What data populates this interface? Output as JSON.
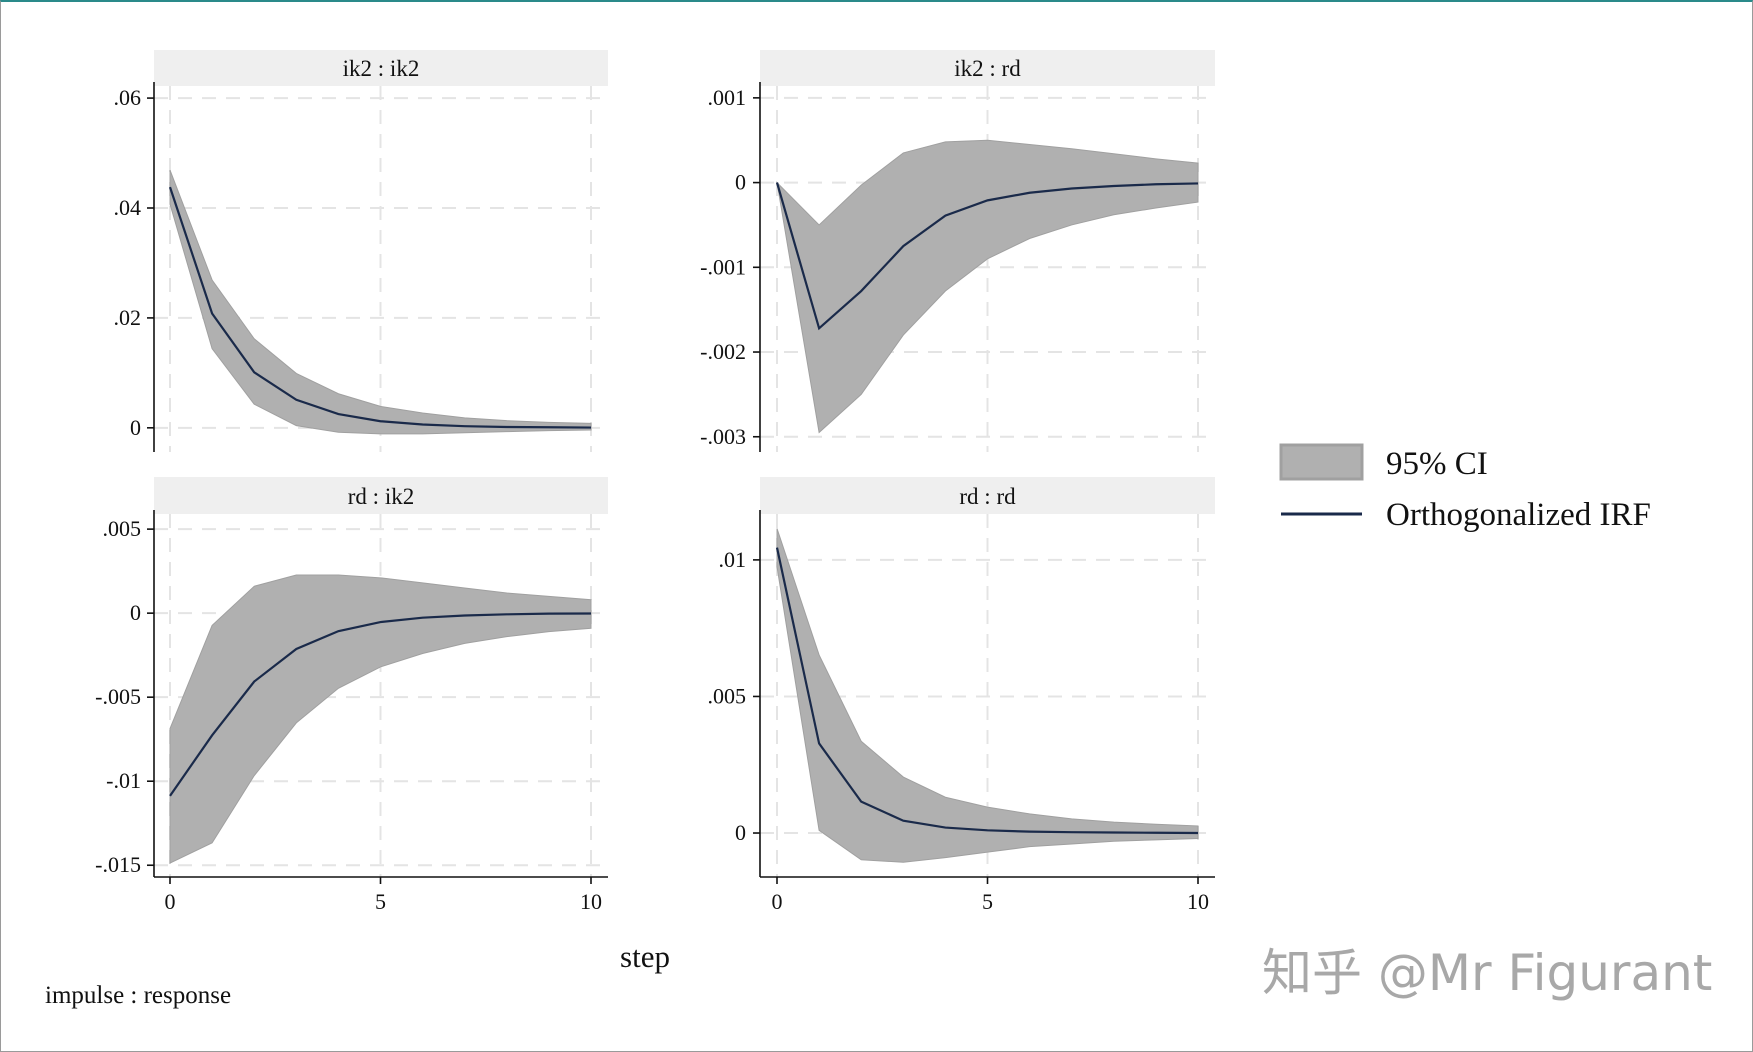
{
  "chart_data": [
    {
      "type": "area",
      "title": "ik2 : ik2",
      "x": [
        0,
        1,
        2,
        3,
        4,
        5,
        6,
        7,
        8,
        9,
        10
      ],
      "xticks": [
        0,
        5,
        10
      ],
      "xlim": [
        0,
        10
      ],
      "ylim": [
        -0.0044,
        0.0622
      ],
      "yticks": [
        {
          "v": 0.06,
          "label": ".06"
        },
        {
          "v": 0.04,
          "label": ".04"
        },
        {
          "v": 0.02,
          "label": ".02"
        },
        {
          "v": 0,
          "label": "0"
        }
      ],
      "irf": [
        0.0438,
        0.0208,
        0.0101,
        0.0051,
        0.0025,
        0.0012,
        0.0006,
        0.0003,
        0.00015,
        0.0001,
        5e-05
      ],
      "upper": [
        0.0469,
        0.0269,
        0.0162,
        0.0099,
        0.0062,
        0.0039,
        0.0027,
        0.0018,
        0.0013,
        0.001,
        0.0008
      ],
      "lower": [
        0.0407,
        0.0144,
        0.0043,
        0.0004,
        -0.0008,
        -0.0011,
        -0.0011,
        -0.0009,
        -0.0007,
        -0.0005,
        -0.0004
      ],
      "grid": true
    },
    {
      "type": "area",
      "title": "ik2 : rd",
      "x": [
        0,
        1,
        2,
        3,
        4,
        5,
        6,
        7,
        8,
        9,
        10
      ],
      "xticks": [
        0,
        5,
        10
      ],
      "xlim": [
        0,
        10
      ],
      "ylim": [
        -0.00318,
        0.00114
      ],
      "yticks": [
        {
          "v": 0.001,
          "label": ".001"
        },
        {
          "v": 0,
          "label": "0"
        },
        {
          "v": -0.001,
          "label": "-.001"
        },
        {
          "v": -0.002,
          "label": "-.002"
        },
        {
          "v": -0.003,
          "label": "-.003"
        }
      ],
      "irf": [
        0,
        -0.00172,
        -0.00128,
        -0.00075,
        -0.00039,
        -0.00021,
        -0.00012,
        -7e-05,
        -4e-05,
        -2e-05,
        -1e-05
      ],
      "upper": [
        0,
        -0.0005,
        -3e-05,
        0.00035,
        0.00048,
        0.0005,
        0.00045,
        0.0004,
        0.00034,
        0.00028,
        0.00023
      ],
      "lower": [
        0,
        -0.00295,
        -0.0025,
        -0.0018,
        -0.00128,
        -0.0009,
        -0.00066,
        -0.0005,
        -0.00038,
        -0.0003,
        -0.00023
      ],
      "grid": true
    },
    {
      "type": "area",
      "title": "rd : ik2",
      "x": [
        0,
        1,
        2,
        3,
        4,
        5,
        6,
        7,
        8,
        9,
        10
      ],
      "xticks": [
        0,
        5,
        10
      ],
      "xlim": [
        0,
        10
      ],
      "ylim": [
        -0.0157,
        0.0059
      ],
      "yticks": [
        {
          "v": 0.005,
          "label": ".005"
        },
        {
          "v": 0,
          "label": "0"
        },
        {
          "v": -0.005,
          "label": "-.005"
        },
        {
          "v": -0.01,
          "label": "-.01"
        },
        {
          "v": -0.015,
          "label": "-.015"
        }
      ],
      "irf": [
        -0.01087,
        -0.00727,
        -0.00407,
        -0.00213,
        -0.00107,
        -0.00053,
        -0.00027,
        -0.00014,
        -7e-05,
        -3e-05,
        -2e-05
      ],
      "upper": [
        -0.00687,
        -0.00073,
        0.0016,
        0.00227,
        0.00227,
        0.0021,
        0.0018,
        0.0015,
        0.0012,
        0.001,
        0.0008
      ],
      "lower": [
        -0.01487,
        -0.01367,
        -0.00967,
        -0.00653,
        -0.00447,
        -0.0032,
        -0.0024,
        -0.0018,
        -0.0014,
        -0.0011,
        -0.0009
      ],
      "grid": true
    },
    {
      "type": "area",
      "title": "rd : rd",
      "x": [
        0,
        1,
        2,
        3,
        4,
        5,
        6,
        7,
        8,
        9,
        10
      ],
      "xticks": [
        0,
        5,
        10
      ],
      "xlim": [
        0,
        10
      ],
      "ylim": [
        -0.00161,
        0.01168
      ],
      "yticks": [
        {
          "v": 0.01,
          "label": ".01"
        },
        {
          "v": 0.005,
          "label": ".005"
        },
        {
          "v": 0,
          "label": "0"
        }
      ],
      "irf": [
        0.01045,
        0.00328,
        0.00115,
        0.00045,
        0.0002,
        0.0001,
        5e-05,
        3e-05,
        2e-05,
        1e-05,
        0
      ],
      "upper": [
        0.01115,
        0.00652,
        0.00336,
        0.00205,
        0.00131,
        0.00095,
        0.0007,
        0.00052,
        0.0004,
        0.00032,
        0.00026
      ],
      "lower": [
        0.00975,
        0.0001,
        -0.00098,
        -0.00107,
        -0.0009,
        -0.0007,
        -0.0005,
        -0.0004,
        -0.0003,
        -0.00025,
        -0.0002
      ],
      "grid": true
    }
  ],
  "xlabel": "step",
  "note": "impulse : response",
  "legend": {
    "placement": "right",
    "ci_label": "95% CI",
    "irf_label": "Orthogonalized IRF"
  },
  "watermark": "知乎 @Mr Figurant",
  "colors": {
    "ci": "#b0b0b0",
    "ci_edge": "#a0a0a0",
    "irf": "#1a2a4a",
    "header": "#efefef",
    "grid": "#e4e4e4"
  }
}
